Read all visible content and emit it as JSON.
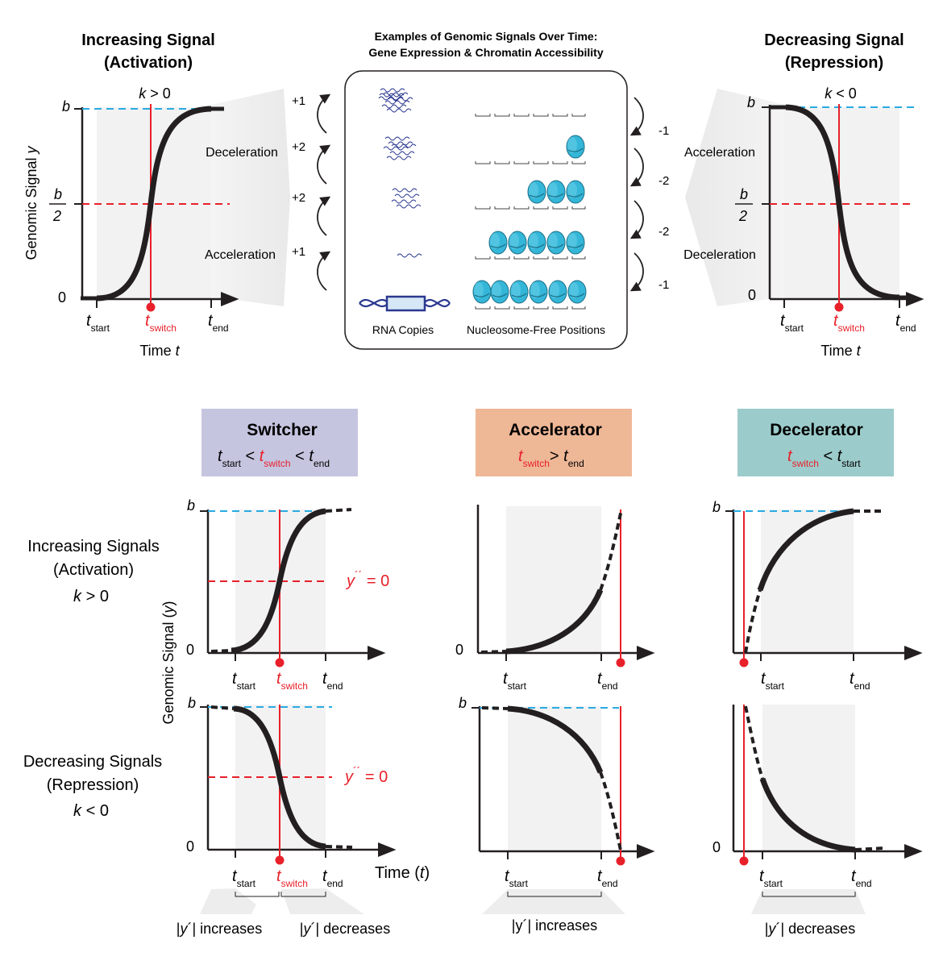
{
  "header": {
    "left_title_1": "Increasing Signal",
    "left_title_2": "(Activation)",
    "right_title_1": "Decreasing Signal",
    "right_title_2": "(Repression)",
    "center_title_1": "Examples of Genomic Signals Over Time:",
    "center_title_2": "Gene Expression & Chromatin Accessibility"
  },
  "top_left": {
    "k_var": "k",
    "k_cond": " > 0",
    "ylabel": "Genomic Signal ",
    "ylabel_var": "y",
    "b": "b",
    "half_b": "b",
    "half_den": "2",
    "zero": "0",
    "t": "t",
    "start": "start",
    "switch": "switch",
    "end": "end",
    "xlabel": "Time ",
    "xlabel_var": "t",
    "label_upper": "Deceleration",
    "label_lower": "Acceleration"
  },
  "top_right": {
    "k_var": "k",
    "k_cond": " < 0",
    "b": "b",
    "half_b": "b",
    "half_den": "2",
    "zero": "0",
    "t": "t",
    "start": "start",
    "switch": "switch",
    "end": "end",
    "xlabel": "Time ",
    "xlabel_var": "t",
    "label_upper": "Acceleration",
    "label_lower": "Deceleration"
  },
  "center": {
    "left_steps": [
      "+1",
      "+2",
      "+2",
      "+1"
    ],
    "right_steps": [
      "-1",
      "-2",
      "-2",
      "-1"
    ],
    "rna_label": "RNA Copies",
    "nuc_label": "Nucleosome-Free Positions"
  },
  "categories": {
    "switcher": {
      "name": "Switcher",
      "color": "#c5c5e0"
    },
    "accelerator": {
      "name": "Accelerator",
      "color": "#eeb796"
    },
    "decelerator": {
      "name": "Decelerator",
      "color": "#9ccbcb"
    },
    "t": "t",
    "lt": " < ",
    "gt": "> ",
    "start": "start",
    "switch": "switch",
    "end": "end"
  },
  "rows": {
    "inc_1": "Increasing Signals",
    "inc_2": "(Activation)",
    "inc_k": "k",
    "inc_cond": " > 0",
    "dec_1": "Decreasing Signals",
    "dec_2": "(Repression)",
    "dec_k": "k",
    "dec_cond": " < 0"
  },
  "bottom": {
    "ylabel": "Genomic Signal (",
    "ylabel_var": "y",
    "ylabel_close": ")",
    "b": "b",
    "zero": "0",
    "y2": "y",
    "y2_eq": " = 0",
    "xlabel": "Time (",
    "xlabel_var": "t",
    "xlabel_close": ")",
    "abs_open": "|",
    "y": "y",
    "abs_close": "´|",
    "increases": " increases",
    "decreases": " decreases",
    "acc_abs": "|y´| increases"
  },
  "colors": {
    "cyan": "#29abe2",
    "red": "#e8202a",
    "shade": "#f2f2f2",
    "nucleosome": "#34b6d8",
    "dna": "#2b3990"
  }
}
